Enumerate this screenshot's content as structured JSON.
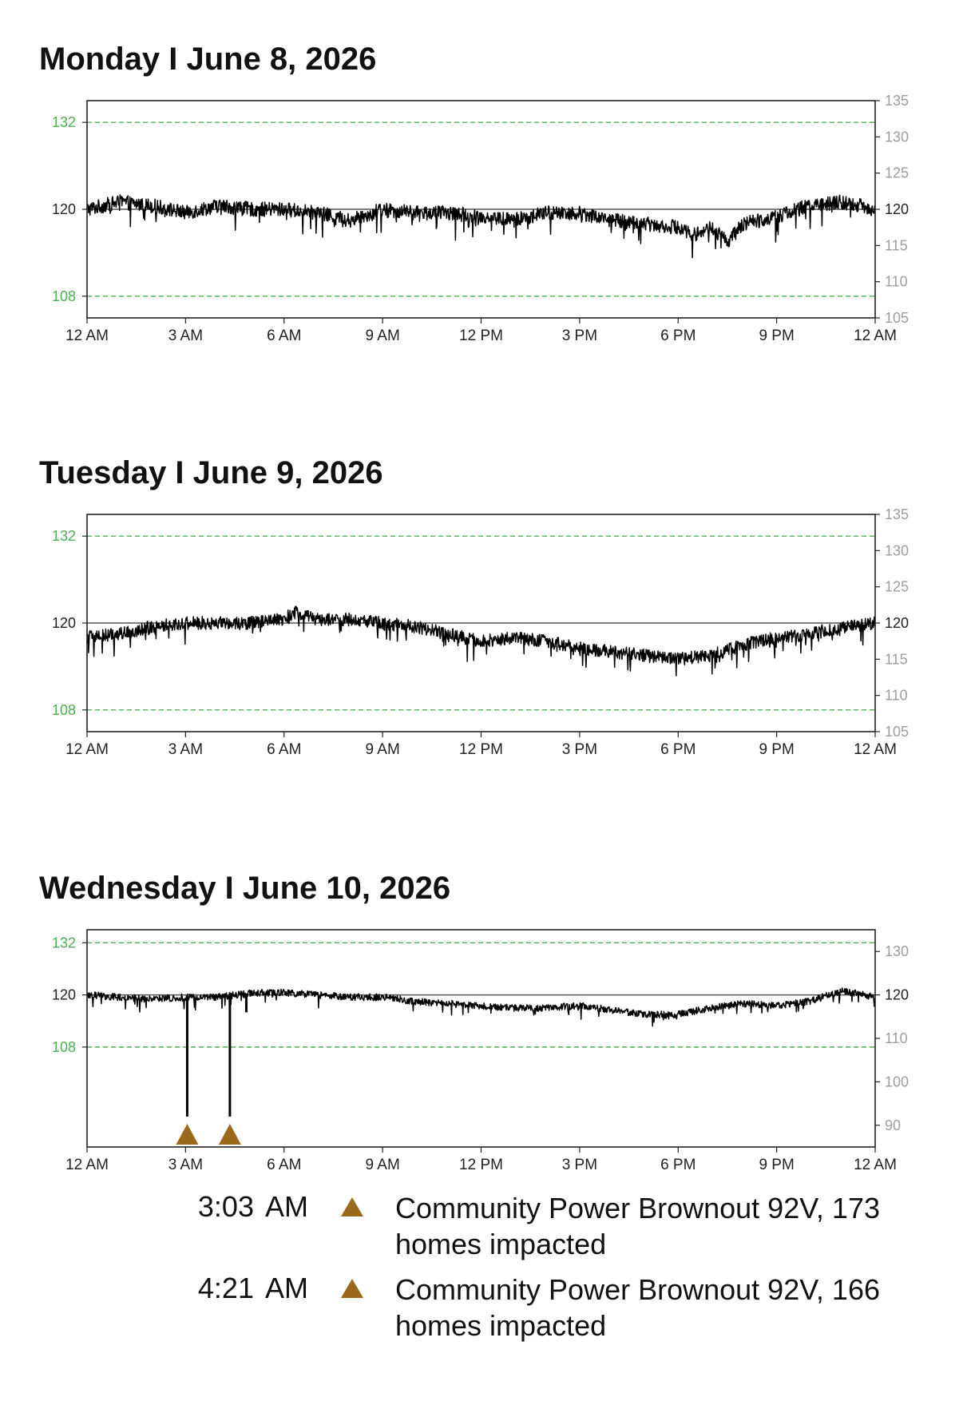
{
  "chart_data": [
    {
      "type": "line",
      "title": "Monday I June 8, 2026",
      "x_tick_labels": [
        "12 AM",
        "3 AM",
        "6 AM",
        "9 AM",
        "12 PM",
        "3 PM",
        "6 PM",
        "9 PM",
        "12 AM"
      ],
      "x_range_hours": [
        0,
        24
      ],
      "left_ticks": [
        132,
        120,
        108
      ],
      "right_ticks": [
        135,
        130,
        125,
        120,
        115,
        110,
        105
      ],
      "ylim": [
        105,
        135
      ],
      "reference_lines": [
        {
          "value": 132,
          "style": "dashed",
          "color": "#4caf50"
        },
        {
          "value": 120,
          "style": "solid",
          "color": "#555555"
        },
        {
          "value": 108,
          "style": "dashed",
          "color": "#4caf50"
        }
      ],
      "series": [
        {
          "color": "#000000",
          "x": [
            0,
            1,
            2,
            3,
            4,
            5,
            6,
            7,
            8,
            9,
            10,
            11,
            12,
            13,
            14,
            15,
            16,
            17,
            18,
            18.5,
            19,
            19.5,
            20,
            21,
            22,
            23,
            24
          ],
          "y": [
            120,
            121,
            120.5,
            119.5,
            120.5,
            120,
            120,
            119.5,
            118.5,
            120,
            119.5,
            119.5,
            119,
            118.5,
            119.5,
            119.5,
            118.5,
            118,
            117.5,
            116.5,
            117.5,
            115.5,
            118,
            119,
            120.5,
            121,
            120
          ],
          "spread": 2.0
        }
      ]
    },
    {
      "type": "line",
      "title": "Tuesday I June 9, 2026",
      "x_tick_labels": [
        "12 AM",
        "3 AM",
        "6 AM",
        "9 AM",
        "12 PM",
        "3 PM",
        "6 PM",
        "9 PM",
        "12 AM"
      ],
      "x_range_hours": [
        0,
        24
      ],
      "left_ticks": [
        132,
        120,
        108
      ],
      "right_ticks": [
        135,
        130,
        125,
        120,
        115,
        110,
        105
      ],
      "ylim": [
        105,
        135
      ],
      "reference_lines": [
        {
          "value": 132,
          "style": "dashed",
          "color": "#4caf50"
        },
        {
          "value": 120,
          "style": "solid",
          "color": "#555555"
        },
        {
          "value": 108,
          "style": "dashed",
          "color": "#4caf50"
        }
      ],
      "series": [
        {
          "color": "#000000",
          "x": [
            0,
            1,
            2,
            3,
            4,
            5,
            6,
            6.3,
            7,
            8,
            9,
            10,
            11,
            12,
            13,
            14,
            15,
            16,
            17,
            18,
            19,
            20,
            21,
            22,
            23,
            24
          ],
          "y": [
            118,
            118.5,
            119.5,
            120,
            120,
            120,
            120.5,
            121.5,
            120.5,
            120.5,
            120,
            119.5,
            118.5,
            117.5,
            118,
            117.5,
            116.5,
            116,
            115.5,
            115,
            115.5,
            117,
            118,
            118.5,
            119.5,
            120
          ],
          "spread": 1.8
        }
      ]
    },
    {
      "type": "line",
      "title": "Wednesday I June 10, 2026",
      "x_tick_labels": [
        "12 AM",
        "3 AM",
        "6 AM",
        "9 AM",
        "12 PM",
        "3 PM",
        "6 PM",
        "9 PM",
        "12 AM"
      ],
      "x_range_hours": [
        0,
        24
      ],
      "left_ticks": [
        132,
        120,
        108
      ],
      "right_ticks": [
        130,
        120,
        110,
        100,
        90
      ],
      "ylim": [
        85,
        135
      ],
      "reference_lines": [
        {
          "value": 132,
          "style": "dashed",
          "color": "#4caf50"
        },
        {
          "value": 120,
          "style": "solid",
          "color": "#555555"
        },
        {
          "value": 108,
          "style": "dashed",
          "color": "#4caf50"
        }
      ],
      "series": [
        {
          "color": "#000000",
          "x": [
            0,
            1,
            2,
            3,
            4,
            5,
            6,
            7,
            8,
            9,
            10,
            11,
            12,
            13,
            14,
            15,
            16,
            17,
            18,
            19,
            20,
            21,
            22,
            23,
            24
          ],
          "y": [
            120,
            119.5,
            119,
            119.5,
            119.5,
            120.5,
            120.5,
            120,
            119.5,
            119.5,
            118.5,
            118,
            117.5,
            117,
            117,
            117.5,
            116.5,
            115.5,
            115.5,
            117,
            118,
            117.5,
            118.5,
            121,
            119.5
          ],
          "spread": 1.6
        }
      ],
      "dips": [
        {
          "time": "3:03 AM",
          "hour": 3.05,
          "min_voltage": 92
        },
        {
          "time": "4:21 AM",
          "hour": 4.35,
          "min_voltage": 92
        },
        {
          "hour": 4.85,
          "min_voltage": 116
        }
      ],
      "markers": [
        {
          "hour": 3.05,
          "shape": "triangle",
          "color": "#9a6a1a"
        },
        {
          "hour": 4.35,
          "shape": "triangle",
          "color": "#9a6a1a"
        }
      ]
    }
  ],
  "events": [
    {
      "time": "3:03 AM",
      "marker_color": "#9a6a1a",
      "description": "Community Power Brownout 92V, 173 homes impacted"
    },
    {
      "time": "4:21 AM",
      "marker_color": "#9a6a1a",
      "description": "Community Power Brownout 92V, 166 homes impacted"
    }
  ],
  "colors": {
    "limit": "#4caf50",
    "right_tick": "#9e9e9e",
    "marker": "#9a6a1a"
  }
}
